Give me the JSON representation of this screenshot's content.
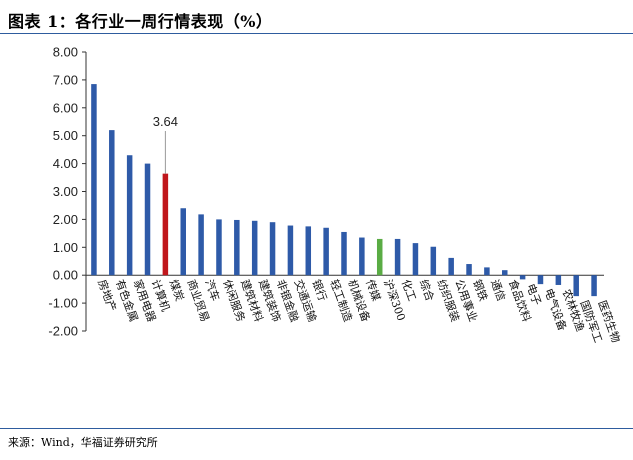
{
  "header": {
    "title": "图表 1：各行业一周行情表现（%）"
  },
  "footer": {
    "source": "来源：Wind，华福证券研究所"
  },
  "colors": {
    "default": "#2e5aa8",
    "highlight": "#c0161b",
    "benchmark": "#5aac44",
    "rule": "#2e5c9e"
  },
  "chart_data": {
    "type": "bar",
    "title": "各行业一周行情表现（%）",
    "xlabel": "",
    "ylabel": "",
    "ylim": [
      -2.0,
      8.0
    ],
    "yticks": [
      "-2.00",
      "-1.00",
      "0.00",
      "1.00",
      "2.00",
      "3.00",
      "4.00",
      "5.00",
      "6.00",
      "7.00",
      "8.00"
    ],
    "grid": false,
    "categories": [
      "房地产",
      "有色金属",
      "家用电器",
      "计算机",
      "煤炭",
      "商业贸易",
      "汽车",
      "休闲服务",
      "建筑材料",
      "建筑装饰",
      "非银金融",
      "交通运输",
      "银行",
      "轻工制造",
      "机械设备",
      "传媒",
      "沪深300",
      "化工",
      "综合",
      "纺织服装",
      "公用事业",
      "钢铁",
      "通信",
      "食品饮料",
      "电子",
      "电气设备",
      "农林牧渔",
      "国防军工",
      "医药生物"
    ],
    "values": [
      6.85,
      5.2,
      4.3,
      4.0,
      3.64,
      2.4,
      2.18,
      2.0,
      1.98,
      1.95,
      1.9,
      1.78,
      1.75,
      1.7,
      1.55,
      1.35,
      1.3,
      1.3,
      1.15,
      1.02,
      0.62,
      0.4,
      0.28,
      0.18,
      -0.15,
      -0.32,
      -0.35,
      -0.75,
      -0.75
    ],
    "highlight": {
      "index": 4,
      "label": "3.64"
    },
    "benchmark_index": 16
  }
}
